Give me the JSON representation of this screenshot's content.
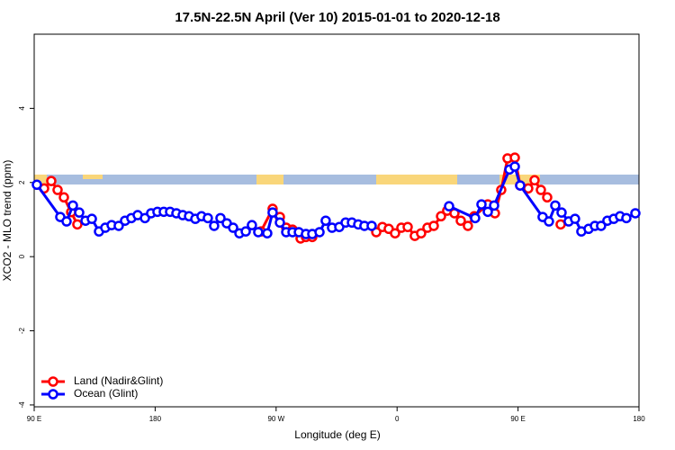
{
  "chart_data": {
    "type": "line",
    "title": "17.5N-22.5N April (Ver 10)   2015-01-01 to 2020-12-18",
    "x_label": "Longitude (deg E)",
    "y_label": "XCO2 - MLO trend (ppm)",
    "xlim": [
      90,
      540
    ],
    "xticks": [
      {
        "value": 90,
        "label": "90 E"
      },
      180,
      {
        "value": 270,
        "label": "90 W"
      },
      {
        "value": 360,
        "label": "0"
      },
      {
        "value": 450,
        "label": "90 E"
      },
      {
        "value": 540,
        "label": "180"
      }
    ],
    "ylim": [
      -4.05,
      6.0
    ],
    "yticks": [
      -4,
      -2,
      0,
      2,
      4
    ],
    "legend": "bottom-left",
    "series": [
      {
        "name": "Land (Nadir&Glint)",
        "color": "#ff0000",
        "x": [
          97.4,
          102.7,
          107.4,
          112.1,
          117.5,
          122.1,
          null,
          258.7,
          267.4,
          272.8,
          277.5,
          282.2,
          288.2,
          292.2,
          296.9,
          null,
          344.5,
          349.1,
          353.8,
          358.5,
          363.2,
          367.9,
          373.2,
          377.9,
          382.6,
          387.3,
          392.7,
          397.3,
          402.7,
          407.4,
          412.7,
          417.4,
          427.5,
          432.8,
          437.5,
          442.2,
          447.6,
          451.6,
          457.6,
          462.3,
          467.0,
          471.7,
          null,
          481.7
        ],
        "values": [
          1.84,
          2.04,
          1.8,
          1.6,
          1.2,
          0.87,
          null,
          0.68,
          1.29,
          1.07,
          0.78,
          0.73,
          0.49,
          0.53,
          0.53,
          null,
          0.66,
          0.8,
          0.75,
          0.63,
          0.78,
          0.8,
          0.56,
          0.63,
          0.78,
          0.83,
          1.09,
          1.24,
          1.17,
          0.97,
          0.83,
          1.09,
          1.41,
          1.17,
          1.8,
          2.65,
          2.67,
          1.92,
          1.84,
          2.06,
          1.8,
          1.6,
          null,
          0.87
        ]
      },
      {
        "name": "Ocean (Glint)",
        "color": "#0000ff",
        "x": [
          92.0,
          109.4,
          114.1,
          118.8,
          123.5,
          128.2,
          132.9,
          138.2,
          142.9,
          147.6,
          152.9,
          157.6,
          162.3,
          167.0,
          172.4,
          177.0,
          181.7,
          186.4,
          191.1,
          195.8,
          200.5,
          205.2,
          209.9,
          214.5,
          219.2,
          223.9,
          228.6,
          233.3,
          238.0,
          242.7,
          247.4,
          252.0,
          256.7,
          263.4,
          267.4,
          272.8,
          277.5,
          282.2,
          286.9,
          292.2,
          296.9,
          302.3,
          306.9,
          311.6,
          317.0,
          321.7,
          326.4,
          331.1,
          335.7,
          341.1,
          null,
          398.7,
          418.1,
          422.8,
          427.5,
          432.2,
          443.6,
          447.6,
          451.6,
          468.3,
          473.0,
          477.7,
          482.4,
          487.7,
          492.4,
          497.1,
          502.5,
          507.2,
          511.8,
          516.5,
          521.2,
          525.9,
          530.6,
          537.3
        ],
        "values": [
          1.94,
          1.07,
          0.95,
          1.38,
          1.19,
          0.97,
          1.02,
          0.68,
          0.78,
          0.85,
          0.83,
          0.97,
          1.04,
          1.12,
          1.04,
          1.17,
          1.21,
          1.21,
          1.21,
          1.17,
          1.12,
          1.09,
          1.02,
          1.09,
          1.04,
          0.83,
          1.04,
          0.9,
          0.78,
          0.63,
          0.68,
          0.85,
          0.66,
          0.63,
          1.19,
          0.92,
          0.66,
          0.66,
          0.66,
          0.61,
          0.61,
          0.66,
          0.97,
          0.78,
          0.8,
          0.92,
          0.92,
          0.87,
          0.83,
          0.83,
          null,
          1.36,
          1.04,
          1.41,
          1.21,
          1.38,
          2.35,
          2.43,
          1.92,
          1.07,
          0.95,
          1.38,
          1.19,
          0.95,
          1.02,
          0.68,
          0.75,
          0.83,
          0.83,
          0.97,
          1.02,
          1.09,
          1.04,
          1.17
        ]
      }
    ]
  }
}
